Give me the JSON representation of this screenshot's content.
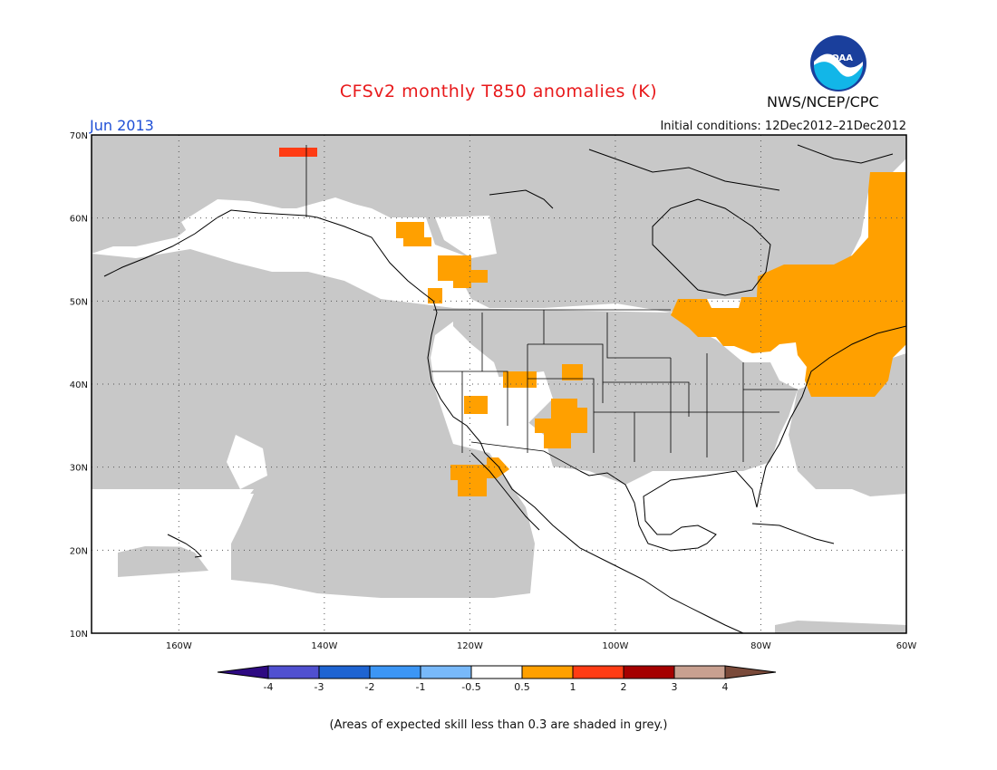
{
  "header": {
    "title": "CFSv2 monthly T850 anomalies (K)",
    "organization": "NWS/NCEP/CPC",
    "logo_text": "NOAA",
    "month": "Jun 2013",
    "initial_conditions": "Initial conditions: 12Dec2012–21Dec2012"
  },
  "map": {
    "lon_range": [
      -172,
      -60
    ],
    "lat_range": [
      10,
      70
    ],
    "lat_ticks": [
      {
        "value": 70,
        "label": "70N"
      },
      {
        "value": 60,
        "label": "60N"
      },
      {
        "value": 50,
        "label": "50N"
      },
      {
        "value": 40,
        "label": "40N"
      },
      {
        "value": 30,
        "label": "30N"
      },
      {
        "value": 20,
        "label": "20N"
      },
      {
        "value": 10,
        "label": "10N"
      }
    ],
    "lon_ticks": [
      {
        "value": -160,
        "label": "160W"
      },
      {
        "value": -140,
        "label": "140W"
      },
      {
        "value": -120,
        "label": "120W"
      },
      {
        "value": -100,
        "label": "100W"
      },
      {
        "value": -80,
        "label": "80W"
      },
      {
        "value": -60,
        "label": "60W"
      }
    ],
    "colors": {
      "grey_skill": "#c8c8c8",
      "warm_0_5_1": "#ffa000",
      "warm_1_2": "#ff3c14",
      "coastline": "#000000"
    }
  },
  "colorbar": {
    "labels": [
      "-4",
      "-3",
      "-2",
      "-1",
      "-0.5",
      "0.5",
      "1",
      "2",
      "3",
      "4"
    ],
    "colors": [
      "#2e0a82",
      "#5050d0",
      "#1e64d2",
      "#3c96f5",
      "#78b9fa",
      "#ffffff",
      "#ffa000",
      "#ff3c14",
      "#a50000",
      "#c8a090",
      "#7a4a3a"
    ]
  },
  "footnote": "(Areas of expected skill less than 0.3 are shaded in grey.)"
}
